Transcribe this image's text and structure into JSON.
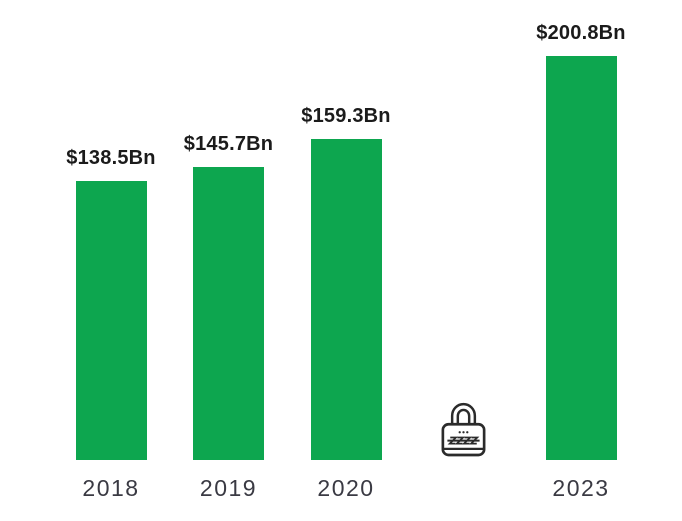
{
  "chart_data": {
    "type": "bar",
    "categories": [
      "2018",
      "2019",
      "2020",
      "",
      "2023"
    ],
    "values": [
      138.5,
      145.7,
      159.3,
      null,
      200.8
    ],
    "slots": [
      {
        "category": "2018",
        "value": 138.5,
        "label": "$138.5Bn",
        "locked": false
      },
      {
        "category": "2019",
        "value": 145.7,
        "label": "$145.7Bn",
        "locked": false
      },
      {
        "category": "2020",
        "value": 159.3,
        "label": "$159.3Bn",
        "locked": false
      },
      {
        "category": "",
        "value": null,
        "label": null,
        "locked": true,
        "icon": "padlock-zzz-icon"
      },
      {
        "category": "2023",
        "value": 200.8,
        "label": "$200.8Bn",
        "locked": false
      }
    ],
    "ylim": [
      0,
      210
    ],
    "grid": false,
    "axis_lines": false,
    "legend": "none",
    "bar_color": "#0DA64F",
    "value_label_color": "#1b1b1b",
    "category_label_color": "#3a3a43",
    "lock_icon_color": "#2b2b2b",
    "background_color": "#ffffff"
  }
}
